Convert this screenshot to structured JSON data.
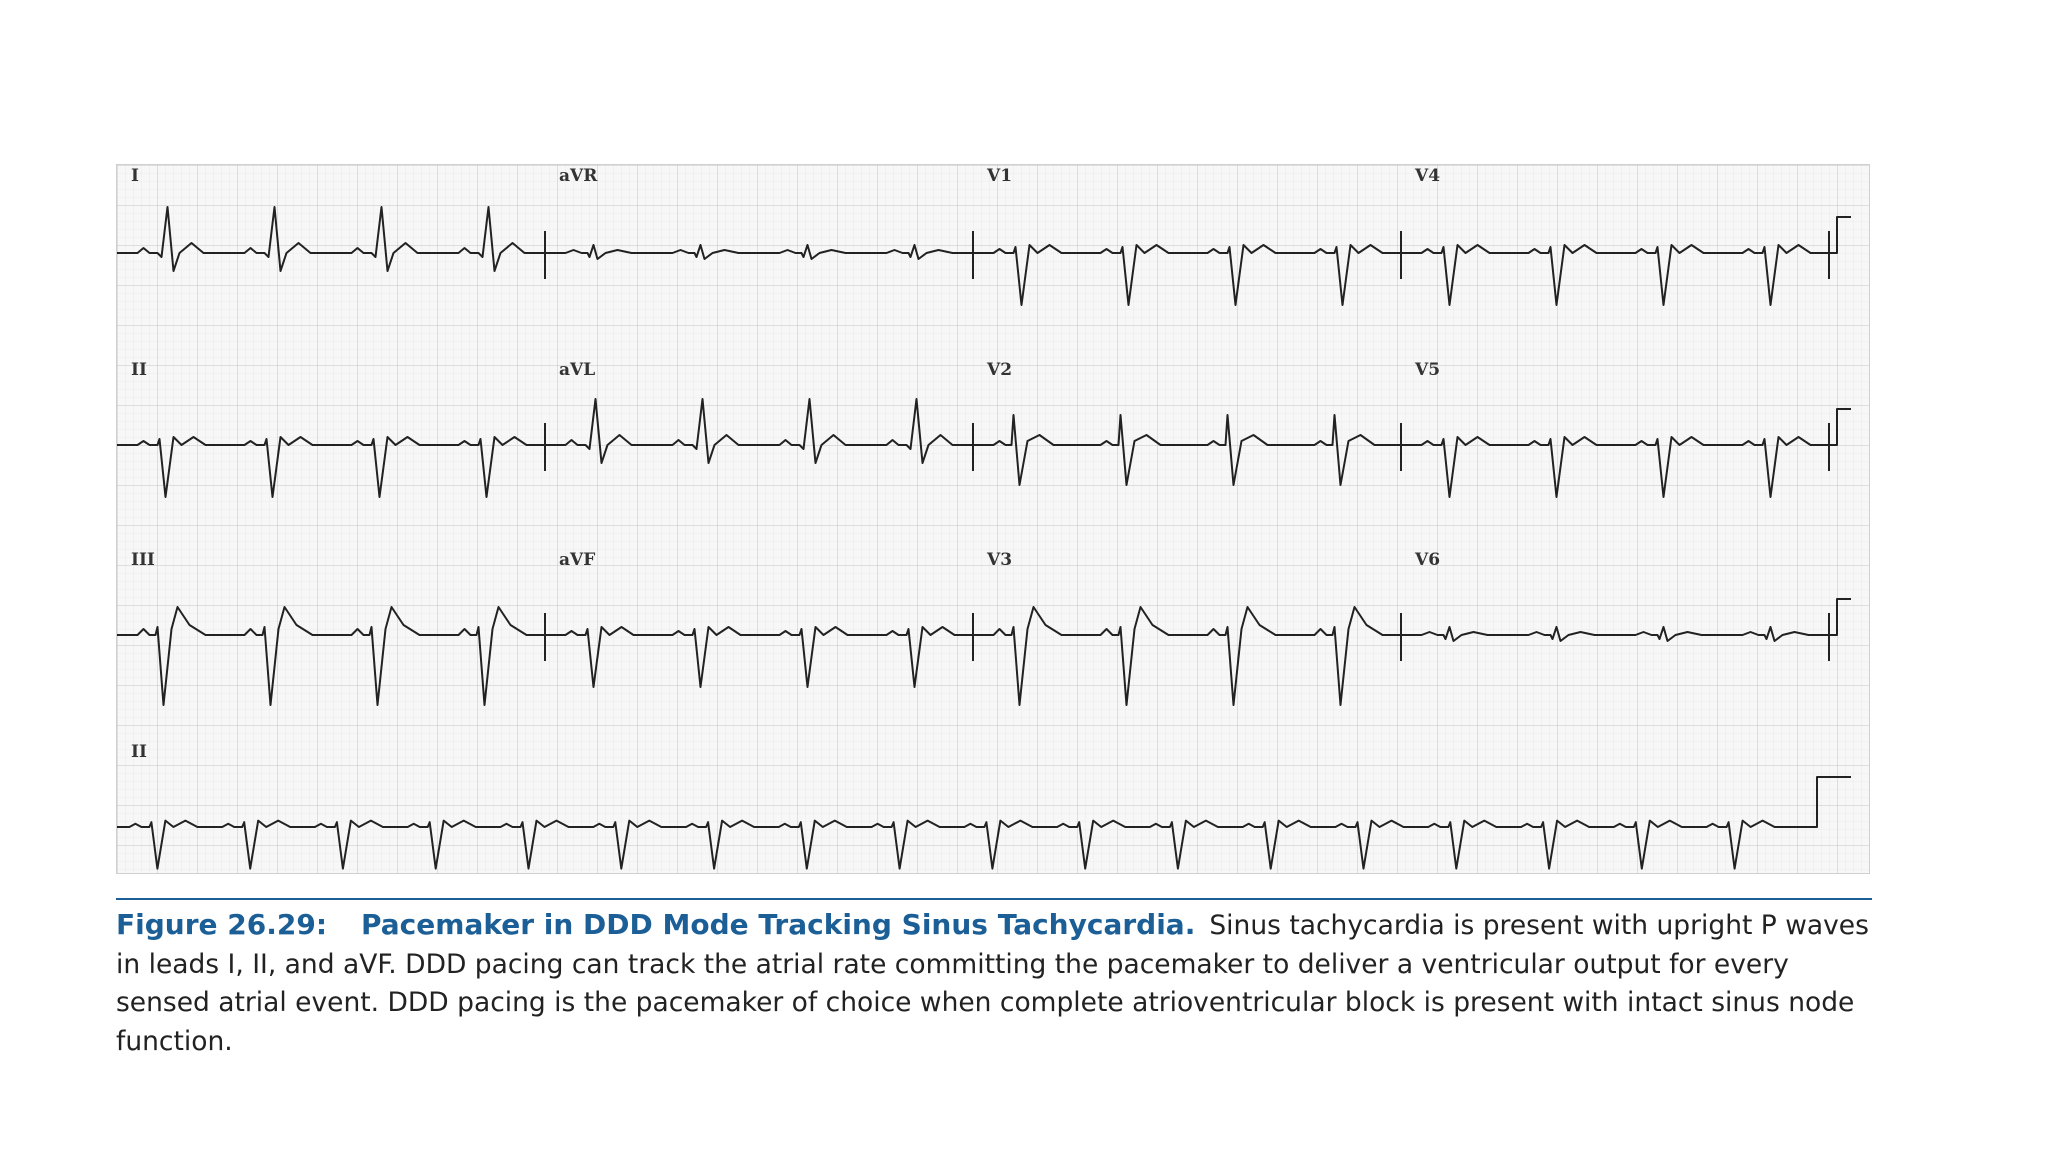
{
  "ecg": {
    "lead_labels": [
      "I",
      "aVR",
      "V1",
      "V4",
      "II",
      "aVL",
      "V2",
      "V5",
      "III",
      "aVF",
      "V3",
      "V6",
      "II"
    ],
    "rhythm_strip_label": "II",
    "grid_color": "#c9c9c9",
    "trace_color": "#222222"
  },
  "caption": {
    "figure_number": "Figure 26.29:",
    "title": "Pacemaker in DDD Mode Tracking Sinus Tachycardia.",
    "body": "Sinus tachycardia is present with upright P waves in leads I, II, and aVF. DDD pacing can track the atrial rate committing the pacemaker to deliver a ventricular output for every sensed atrial event. DDD pacing is the pacemaker of choice when complete atrioventricular block is present with intact sinus node function.",
    "accent_color": "#1b5f96"
  }
}
